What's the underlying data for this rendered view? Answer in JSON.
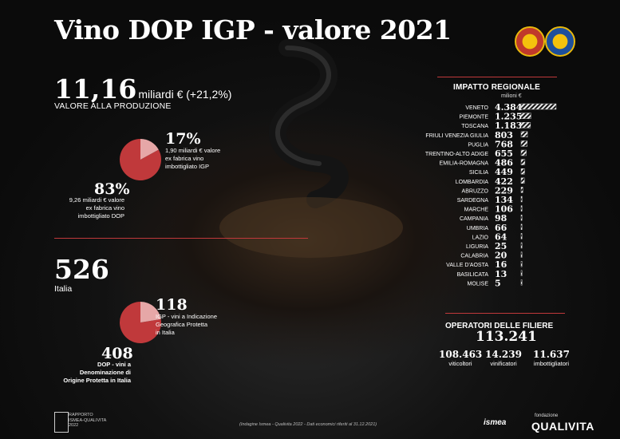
{
  "title": "Vino DOP IGP - valore 2021",
  "production": {
    "value": "11,16",
    "unit": "miliardi € (+21,2%)",
    "label": "VALORE ALLA PRODUZIONE"
  },
  "split": {
    "igp_pct": "17%",
    "igp_note": [
      "1,90 miliardi € valore",
      "ex fabrica vino",
      "imbottigliato IGP"
    ],
    "dop_pct": "83%",
    "dop_note": [
      "9,26 miliardi € valore",
      "ex fabrica vino",
      "imbottigliato DOP"
    ],
    "igp_share": 0.17
  },
  "products": {
    "total": "526",
    "total_label": "Italia",
    "igp_count": "118",
    "igp_note": [
      "IGP - vini a Indicazione",
      "Geografica Protetta",
      "in Italia"
    ],
    "dop_count": "408",
    "dop_note": [
      "DOP - vini a",
      "Denominazione di",
      "Origine Protetta in Italia"
    ],
    "igp_share": 0.2243
  },
  "chart_data": {
    "type": "bar",
    "orientation": "horizontal",
    "title": "IMPATTO REGIONALE",
    "unit": "milioni €",
    "categories": [
      "VENETO",
      "PIEMONTE",
      "TOSCANA",
      "FRIULI VENEZIA GIULIA",
      "PUGLIA",
      "TRENTINO-ALTO ADIGE",
      "EMILIA-ROMAGNA",
      "SICILIA",
      "LOMBARDIA",
      "ABRUZZO",
      "SARDEGNA",
      "MARCHE",
      "CAMPANIA",
      "UMBRIA",
      "LAZIO",
      "LIGURIA",
      "CALABRIA",
      "VALLE D'AOSTA",
      "BASILICATA",
      "MOLISE"
    ],
    "values": [
      4384,
      1235,
      1183,
      803,
      768,
      655,
      486,
      449,
      422,
      229,
      134,
      106,
      98,
      66,
      64,
      25,
      20,
      16,
      13,
      5
    ],
    "labels": [
      "4.384",
      "1.235",
      "1.183",
      "803",
      "768",
      "655",
      "486",
      "449",
      "422",
      "229",
      "134",
      "106",
      "98",
      "66",
      "64",
      "25",
      "20",
      "16",
      "13",
      "5"
    ],
    "xlim": [
      0,
      4384
    ]
  },
  "operators": {
    "title": "OPERATORI DELLE FILIERE",
    "total": "113.241",
    "items": [
      {
        "value": "108.463",
        "label": "viticoltori"
      },
      {
        "value": "14.239",
        "label": "vinificatori"
      },
      {
        "value": "11.637",
        "label": "imbottigliatori"
      }
    ]
  },
  "footer": {
    "report": [
      "RAPPORTO",
      "ISMEA-QUALIVITA",
      "2022"
    ],
    "source": "(Indagine Ismea - Qualivita 2022 - Dati economici riferiti al 31.12.2021)",
    "ismea": "ismea",
    "fondazione": "fondazione",
    "qualivita": "QUALIVITA"
  },
  "colors": {
    "accent": "#c0393b",
    "pie_main": "#c0393b",
    "pie_minor": "#e6a7a7"
  }
}
